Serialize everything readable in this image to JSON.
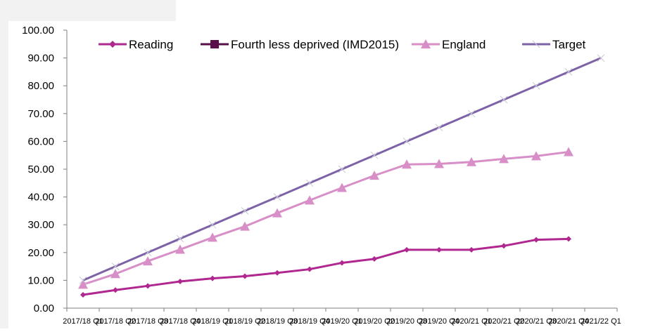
{
  "chart_data": {
    "type": "line",
    "title": "",
    "xlabel": "",
    "ylabel": "",
    "ylim": [
      0,
      100
    ],
    "y_ticks": [
      "0.00",
      "10.00",
      "20.00",
      "30.00",
      "40.00",
      "50.00",
      "60.00",
      "70.00",
      "80.00",
      "90.00",
      "100.00"
    ],
    "categories": [
      "2017/18 Q1",
      "2017/18 Q2",
      "2017/18 Q3",
      "2017/18 Q4",
      "2018/19 Q1",
      "2018/19 Q2",
      "2018/19 Q3",
      "2018/19 Q4",
      "2019/20 Q1",
      "2019/20 Q2",
      "2019/20 Q3",
      "2019/20 Q4",
      "2020/21 Q1",
      "2020/21 Q2",
      "2020/21 Q3",
      "2020/21 Q4",
      "2021/22 Q1"
    ],
    "legend_position": "top",
    "grid": false,
    "series": [
      {
        "name": "Reading",
        "color": "#b0278f",
        "marker": "diamond",
        "values": [
          4.8,
          6.5,
          8.0,
          9.6,
          10.7,
          11.5,
          12.7,
          14.0,
          16.3,
          17.7,
          21.0,
          21.0,
          21.0,
          22.4,
          24.6,
          24.9,
          null
        ]
      },
      {
        "name": "Fourth less deprived (IMD2015)",
        "color": "#5a0f4a",
        "marker": "square",
        "values": [
          null,
          null,
          null,
          null,
          null,
          null,
          null,
          null,
          null,
          null,
          null,
          null,
          null,
          null,
          null,
          null,
          null
        ]
      },
      {
        "name": "England",
        "color": "#d88fc8",
        "marker": "triangle",
        "values": [
          8.5,
          12.3,
          16.9,
          21.1,
          25.4,
          29.4,
          34.2,
          38.8,
          43.3,
          47.7,
          51.7,
          51.9,
          52.6,
          53.7,
          54.7,
          56.2,
          null
        ]
      },
      {
        "name": "Target",
        "color": "#7d62a8",
        "marker": "x",
        "values": [
          10,
          15,
          20,
          25,
          30,
          35,
          40,
          45,
          50,
          55,
          60,
          65,
          70,
          75,
          80,
          85,
          90
        ]
      }
    ]
  }
}
